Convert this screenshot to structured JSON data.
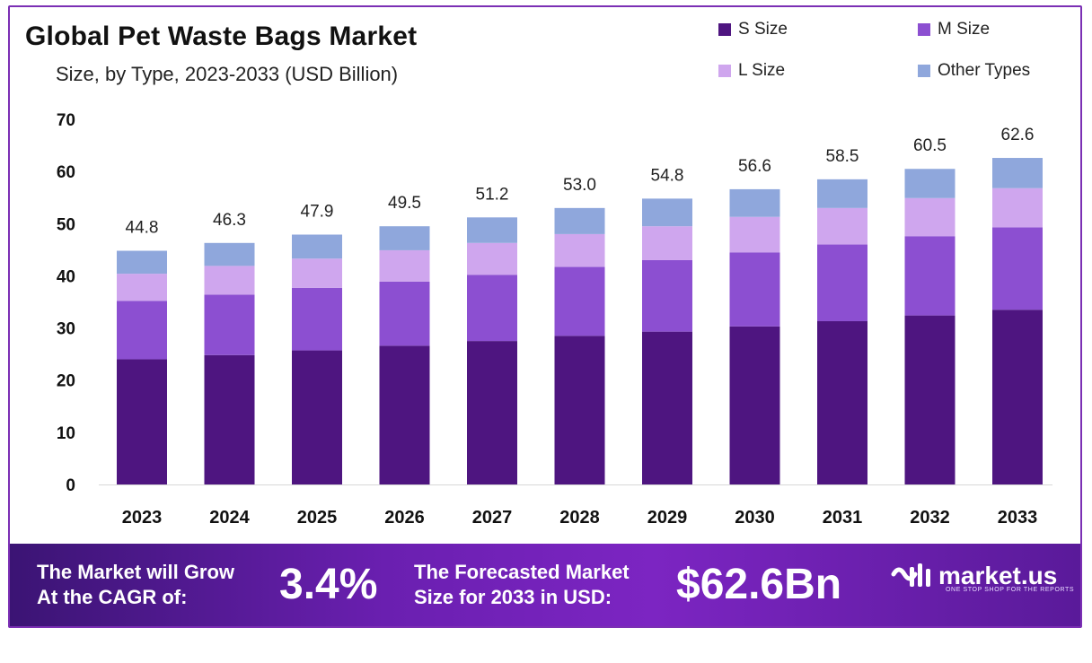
{
  "title": "Global Pet Waste Bags Market",
  "subtitle": "Size, by Type, 2023-2033 (USD Billion)",
  "colors": {
    "s_size": "#4e1580",
    "m_size": "#8c4fd1",
    "l_size": "#cfa6ee",
    "other_types": "#8fa7dc",
    "banner": "#6a1fb0"
  },
  "legend": [
    {
      "label": "S Size",
      "color": "#4e1580"
    },
    {
      "label": "M Size",
      "color": "#8c4fd1"
    },
    {
      "label": "L Size",
      "color": "#cfa6ee"
    },
    {
      "label": "Other Types",
      "color": "#8fa7dc"
    }
  ],
  "chart_data": {
    "type": "bar",
    "stacked": true,
    "title": "Global Pet Waste Bags Market",
    "subtitle": "Size, by Type, 2023-2033 (USD Billion)",
    "categories": [
      "2023",
      "2024",
      "2025",
      "2026",
      "2027",
      "2028",
      "2029",
      "2030",
      "2031",
      "2032",
      "2033"
    ],
    "series": [
      {
        "name": "S Size",
        "values": [
          24.0,
          24.8,
          25.7,
          26.6,
          27.5,
          28.5,
          29.3,
          30.3,
          31.3,
          32.4,
          33.5
        ]
      },
      {
        "name": "M Size",
        "values": [
          11.2,
          11.6,
          12.0,
          12.3,
          12.7,
          13.2,
          13.7,
          14.2,
          14.7,
          15.2,
          15.8
        ]
      },
      {
        "name": "L Size",
        "values": [
          5.2,
          5.5,
          5.6,
          6.0,
          6.1,
          6.3,
          6.5,
          6.8,
          7.0,
          7.3,
          7.5
        ]
      },
      {
        "name": "Other Types",
        "values": [
          4.4,
          4.4,
          4.6,
          4.6,
          4.9,
          5.0,
          5.3,
          5.3,
          5.5,
          5.6,
          5.8
        ]
      }
    ],
    "totals": [
      "44.8",
      "46.3",
      "47.9",
      "49.5",
      "51.2",
      "53.0",
      "54.8",
      "56.6",
      "58.5",
      "60.5",
      "62.6"
    ],
    "y_ticks": [
      "0",
      "10",
      "20",
      "30",
      "40",
      "50",
      "60",
      "70"
    ],
    "ylim": [
      0,
      70
    ],
    "xlabel": "",
    "ylabel": "",
    "grid": false,
    "legend_position": "top-right"
  },
  "banner": {
    "cagr_text_line1": "The Market will Grow",
    "cagr_text_line2": "At the CAGR of:",
    "cagr_value": "3.4%",
    "forecast_text_line1": "The Forecasted Market",
    "forecast_text_line2": "Size for 2033 in USD:",
    "forecast_value": "$62.6Bn",
    "brand_name": "market.us",
    "brand_tagline": "ONE STOP SHOP FOR THE REPORTS"
  }
}
